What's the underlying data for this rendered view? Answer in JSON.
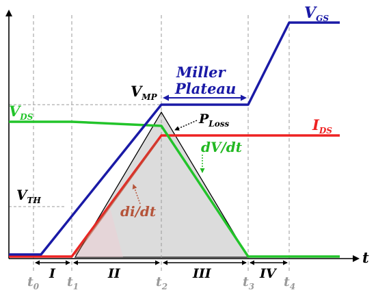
{
  "labels": {
    "vgs_main": "V",
    "vgs_sub": "GS",
    "vds_main": "V",
    "vds_sub": "DS",
    "ids_main": "I",
    "ids_sub": "DS",
    "vmp_main": "V",
    "vmp_sub": "MP",
    "vth_main": "V",
    "vth_sub": "TH",
    "ploss_main": "P",
    "ploss_sub": "Loss",
    "miller_line1": "Miller",
    "miller_line2": "Plateau",
    "dvdt": "dV/dt",
    "didt": "di/dt",
    "time_axis": "t"
  },
  "time_ticks": [
    {
      "main": "t",
      "sub": "0"
    },
    {
      "main": "t",
      "sub": "1"
    },
    {
      "main": "t",
      "sub": "2"
    },
    {
      "main": "t",
      "sub": "3"
    },
    {
      "main": "t",
      "sub": "4"
    }
  ],
  "regions": [
    "I",
    "II",
    "III",
    "IV"
  ],
  "colors": {
    "vgs": "#1a1aa6",
    "vds": "#22c42a",
    "ids": "#ee2222",
    "ploss_fill": "#dcdcdc",
    "didt_label": "#b5543a",
    "dvdt_label": "#22b822",
    "guide": "#9a9a9a"
  }
}
